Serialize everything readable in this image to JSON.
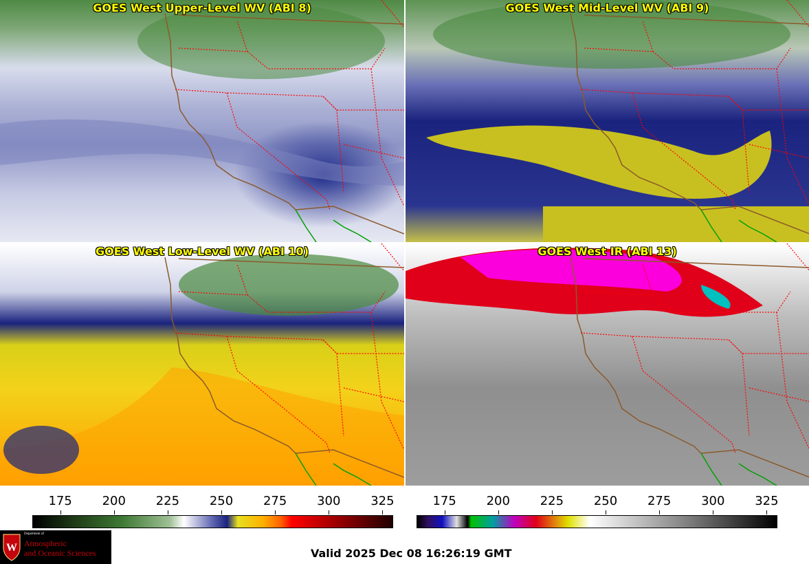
{
  "panels": [
    {
      "title": "GOES West Upper-Level WV (ABI 8)",
      "scheme": "wv"
    },
    {
      "title": "GOES West Mid-Level WV (ABI 9)",
      "scheme": "wv-mid"
    },
    {
      "title": "GOES West Low-Level WV (ABI 10)",
      "scheme": "wv-low"
    },
    {
      "title": "GOES West IR (ABI 13)",
      "scheme": "ir"
    }
  ],
  "colorbars": [
    {
      "ticks": [
        "175",
        "200",
        "225",
        "250",
        "275",
        "300",
        "325"
      ],
      "range": [
        162,
        330
      ],
      "scheme": "wv"
    },
    {
      "ticks": [
        "175",
        "200",
        "225",
        "250",
        "275",
        "300",
        "325"
      ],
      "range": [
        162,
        330
      ],
      "scheme": "ir"
    }
  ],
  "colors": {
    "title": "#ffff00",
    "state_lines": "#ff0000",
    "coastline": "#8b5a2b",
    "mexico_coast": "#00a000"
  },
  "logo": {
    "dept": "Department of",
    "line1": "Atmospheric",
    "line2": "and Oceanic Sciences",
    "icon": "uw-seal-icon"
  },
  "valid_time": "Valid 2025 Dec 08 16:26:19 GMT"
}
